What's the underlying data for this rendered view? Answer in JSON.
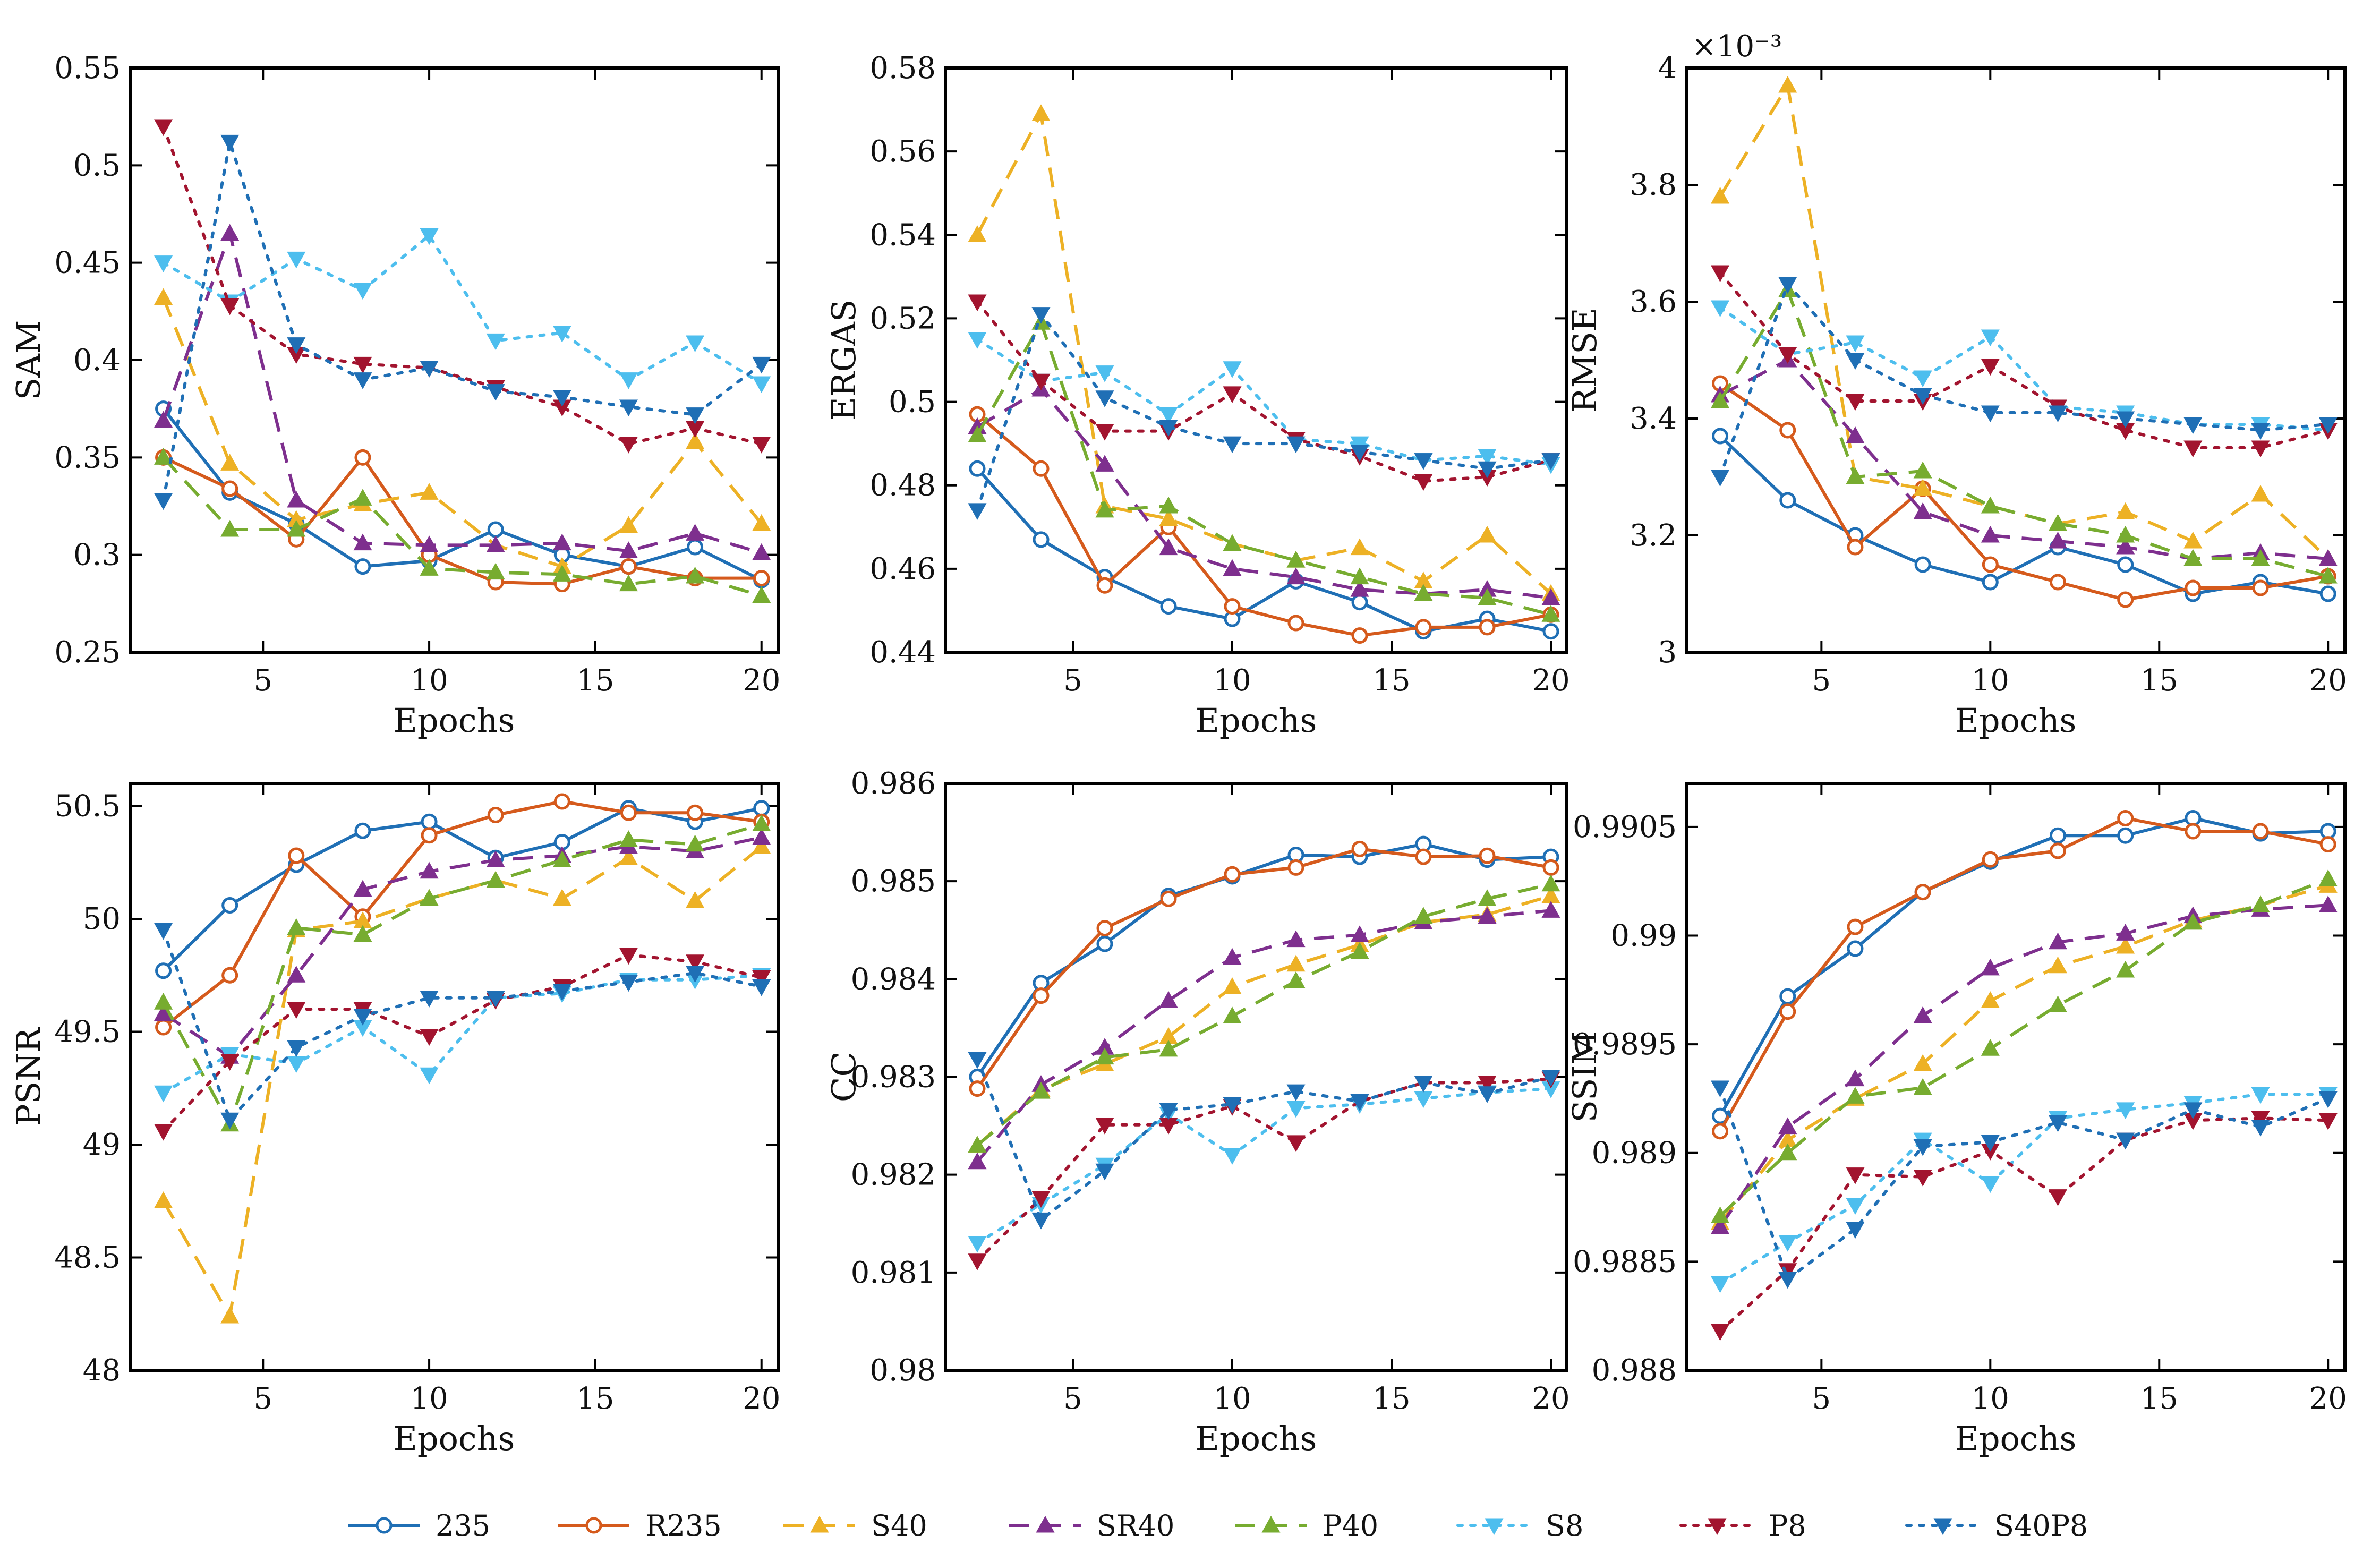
{
  "series_styles": [
    {
      "name": "235",
      "color": "#1f6fb5",
      "dash": "solid",
      "marker": "circle"
    },
    {
      "name": "R235",
      "color": "#d55a1c",
      "dash": "solid",
      "marker": "circle"
    },
    {
      "name": "S40",
      "color": "#edb125",
      "dash": "dashed",
      "marker": "triangle-up"
    },
    {
      "name": "SR40",
      "color": "#7e2f8e",
      "dash": "dashed",
      "marker": "triangle-up"
    },
    {
      "name": "P40",
      "color": "#77ac30",
      "dash": "dashed",
      "marker": "triangle-up"
    },
    {
      "name": "S8",
      "color": "#4dbeee",
      "dash": "dotted",
      "marker": "triangle-down"
    },
    {
      "name": "P8",
      "color": "#a2142f",
      "dash": "dotted",
      "marker": "triangle-down"
    },
    {
      "name": "S40P8",
      "color": "#1f6fb5",
      "dash": "dotted",
      "marker": "triangle-down"
    }
  ],
  "legend": {
    "placement": "bottom"
  },
  "chart_data": [
    {
      "type": "line",
      "ylabel": "SAM",
      "xlabel": "Epochs",
      "xlim": [
        1,
        20.5
      ],
      "ylim": [
        0.25,
        0.55
      ],
      "xticks": [
        5,
        10,
        15,
        20
      ],
      "xtick_labels": [
        "5",
        "10",
        "15",
        "20"
      ],
      "yticks": [
        0.25,
        0.3,
        0.35,
        0.4,
        0.45,
        0.5,
        0.55
      ],
      "ytick_labels": [
        "0.25",
        "0.3",
        "0.35",
        "0.4",
        "0.45",
        "0.5",
        "0.55"
      ],
      "scale_label": "",
      "x": [
        2,
        4,
        6,
        8,
        10,
        12,
        14,
        16,
        18,
        20
      ],
      "series": [
        {
          "name": "235",
          "values": [
            0.375,
            0.332,
            0.316,
            0.294,
            0.297,
            0.313,
            0.3,
            0.294,
            0.304,
            0.287
          ]
        },
        {
          "name": "R235",
          "values": [
            0.35,
            0.334,
            0.308,
            0.35,
            0.3,
            0.286,
            0.285,
            0.294,
            0.288,
            0.288
          ]
        },
        {
          "name": "S40",
          "values": [
            0.432,
            0.347,
            0.318,
            0.326,
            0.332,
            0.305,
            0.294,
            0.315,
            0.358,
            0.316
          ]
        },
        {
          "name": "SR40",
          "values": [
            0.369,
            0.465,
            0.328,
            0.306,
            0.305,
            0.305,
            0.306,
            0.302,
            0.311,
            0.301
          ]
        },
        {
          "name": "P40",
          "values": [
            0.35,
            0.313,
            0.313,
            0.329,
            0.293,
            0.291,
            0.29,
            0.285,
            0.289,
            0.279
          ]
        },
        {
          "name": "S8",
          "values": [
            0.45,
            0.43,
            0.452,
            0.436,
            0.464,
            0.41,
            0.414,
            0.39,
            0.409,
            0.388
          ]
        },
        {
          "name": "P8",
          "values": [
            0.52,
            0.428,
            0.403,
            0.398,
            0.396,
            0.386,
            0.376,
            0.357,
            0.365,
            0.357
          ]
        },
        {
          "name": "S40P8",
          "values": [
            0.328,
            0.512,
            0.408,
            0.39,
            0.396,
            0.384,
            0.381,
            0.376,
            0.372,
            0.398
          ]
        }
      ]
    },
    {
      "type": "line",
      "ylabel": "ERGAS",
      "xlabel": "Epochs",
      "xlim": [
        1,
        20.5
      ],
      "ylim": [
        0.44,
        0.58
      ],
      "xticks": [
        5,
        10,
        15,
        20
      ],
      "xtick_labels": [
        "5",
        "10",
        "15",
        "20"
      ],
      "yticks": [
        0.44,
        0.46,
        0.48,
        0.5,
        0.52,
        0.54,
        0.56,
        0.58
      ],
      "ytick_labels": [
        "0.44",
        "0.46",
        "0.48",
        "0.5",
        "0.52",
        "0.54",
        "0.56",
        "0.58"
      ],
      "scale_label": "",
      "x": [
        2,
        4,
        6,
        8,
        10,
        12,
        14,
        16,
        18,
        20
      ],
      "series": [
        {
          "name": "235",
          "values": [
            0.484,
            0.467,
            0.458,
            0.451,
            0.448,
            0.457,
            0.452,
            0.445,
            0.448,
            0.445
          ]
        },
        {
          "name": "R235",
          "values": [
            0.497,
            0.484,
            0.456,
            0.47,
            0.451,
            0.447,
            0.444,
            0.446,
            0.446,
            0.449
          ]
        },
        {
          "name": "S40",
          "values": [
            0.54,
            0.569,
            0.475,
            0.472,
            0.466,
            0.462,
            0.465,
            0.457,
            0.468,
            0.454
          ]
        },
        {
          "name": "SR40",
          "values": [
            0.494,
            0.503,
            0.485,
            0.465,
            0.46,
            0.458,
            0.455,
            0.454,
            0.455,
            0.453
          ]
        },
        {
          "name": "P40",
          "values": [
            0.492,
            0.519,
            0.474,
            0.475,
            0.466,
            0.462,
            0.458,
            0.454,
            0.453,
            0.449
          ]
        },
        {
          "name": "S8",
          "values": [
            0.515,
            0.505,
            0.507,
            0.497,
            0.508,
            0.491,
            0.49,
            0.486,
            0.487,
            0.485
          ]
        },
        {
          "name": "P8",
          "values": [
            0.524,
            0.505,
            0.493,
            0.493,
            0.502,
            0.491,
            0.487,
            0.481,
            0.482,
            0.486
          ]
        },
        {
          "name": "S40P8",
          "values": [
            0.474,
            0.521,
            0.501,
            0.494,
            0.49,
            0.49,
            0.488,
            0.486,
            0.484,
            0.486
          ]
        }
      ]
    },
    {
      "type": "line",
      "ylabel": "RMSE",
      "xlabel": "Epochs",
      "xlim": [
        1,
        20.5
      ],
      "ylim": [
        3.0,
        4.0
      ],
      "xticks": [
        5,
        10,
        15,
        20
      ],
      "xtick_labels": [
        "5",
        "10",
        "15",
        "20"
      ],
      "yticks": [
        3.0,
        3.2,
        3.4,
        3.6,
        3.8,
        4.0
      ],
      "ytick_labels": [
        "3",
        "3.2",
        "3.4",
        "3.6",
        "3.8",
        "4"
      ],
      "scale_label": "×10⁻³",
      "x": [
        2,
        4,
        6,
        8,
        10,
        12,
        14,
        16,
        18,
        20
      ],
      "series": [
        {
          "name": "235",
          "values": [
            3.37,
            3.26,
            3.2,
            3.15,
            3.12,
            3.18,
            3.15,
            3.1,
            3.12,
            3.1
          ]
        },
        {
          "name": "R235",
          "values": [
            3.46,
            3.38,
            3.18,
            3.28,
            3.15,
            3.12,
            3.09,
            3.11,
            3.11,
            3.13
          ]
        },
        {
          "name": "S40",
          "values": [
            3.78,
            3.97,
            3.3,
            3.28,
            3.25,
            3.22,
            3.24,
            3.19,
            3.27,
            3.16
          ]
        },
        {
          "name": "SR40",
          "values": [
            3.44,
            3.5,
            3.37,
            3.24,
            3.2,
            3.19,
            3.18,
            3.16,
            3.17,
            3.16
          ]
        },
        {
          "name": "P40",
          "values": [
            3.43,
            3.62,
            3.3,
            3.31,
            3.25,
            3.22,
            3.2,
            3.16,
            3.16,
            3.13
          ]
        },
        {
          "name": "S8",
          "values": [
            3.59,
            3.51,
            3.53,
            3.47,
            3.54,
            3.42,
            3.41,
            3.39,
            3.39,
            3.38
          ]
        },
        {
          "name": "P8",
          "values": [
            3.65,
            3.51,
            3.43,
            3.43,
            3.49,
            3.42,
            3.38,
            3.35,
            3.35,
            3.38
          ]
        },
        {
          "name": "S40P8",
          "values": [
            3.3,
            3.63,
            3.5,
            3.44,
            3.41,
            3.41,
            3.4,
            3.39,
            3.38,
            3.39
          ]
        }
      ]
    },
    {
      "type": "line",
      "ylabel": "PSNR",
      "xlabel": "Epochs",
      "xlim": [
        1,
        20.5
      ],
      "ylim": [
        48.0,
        50.6
      ],
      "xticks": [
        5,
        10,
        15,
        20
      ],
      "xtick_labels": [
        "5",
        "10",
        "15",
        "20"
      ],
      "yticks": [
        48.0,
        48.5,
        49.0,
        49.5,
        50.0,
        50.5
      ],
      "ytick_labels": [
        "48",
        "48.5",
        "49",
        "49.5",
        "50",
        "50.5"
      ],
      "scale_label": "",
      "x": [
        2,
        4,
        6,
        8,
        10,
        12,
        14,
        16,
        18,
        20
      ],
      "series": [
        {
          "name": "235",
          "values": [
            49.77,
            50.06,
            50.24,
            50.39,
            50.43,
            50.27,
            50.34,
            50.49,
            50.43,
            50.49
          ]
        },
        {
          "name": "R235",
          "values": [
            49.52,
            49.75,
            50.28,
            50.01,
            50.37,
            50.46,
            50.52,
            50.47,
            50.47,
            50.43
          ]
        },
        {
          "name": "S40",
          "values": [
            48.75,
            48.24,
            49.95,
            49.99,
            50.09,
            50.17,
            50.09,
            50.27,
            50.08,
            50.32
          ]
        },
        {
          "name": "SR40",
          "values": [
            49.58,
            49.39,
            49.75,
            50.13,
            50.21,
            50.26,
            50.28,
            50.32,
            50.3,
            50.36
          ]
        },
        {
          "name": "P40",
          "values": [
            49.63,
            49.09,
            49.96,
            49.93,
            50.09,
            50.17,
            50.26,
            50.35,
            50.33,
            50.42
          ]
        },
        {
          "name": "S8",
          "values": [
            49.23,
            49.4,
            49.36,
            49.52,
            49.31,
            49.65,
            49.67,
            49.73,
            49.73,
            49.75
          ]
        },
        {
          "name": "P8",
          "values": [
            49.06,
            49.37,
            49.6,
            49.6,
            49.48,
            49.64,
            49.7,
            49.84,
            49.81,
            49.74
          ]
        },
        {
          "name": "S40P8",
          "values": [
            49.95,
            49.11,
            49.43,
            49.57,
            49.65,
            49.65,
            49.68,
            49.72,
            49.76,
            49.7
          ]
        }
      ]
    },
    {
      "type": "line",
      "ylabel": "CC",
      "xlabel": "Epochs",
      "xlim": [
        1,
        20.5
      ],
      "ylim": [
        0.98,
        0.986
      ],
      "xticks": [
        5,
        10,
        15,
        20
      ],
      "xtick_labels": [
        "5",
        "10",
        "15",
        "20"
      ],
      "yticks": [
        0.98,
        0.981,
        0.982,
        0.983,
        0.984,
        0.985,
        0.986
      ],
      "ytick_labels": [
        "0.98",
        "0.981",
        "0.982",
        "0.983",
        "0.984",
        "0.985",
        "0.986"
      ],
      "scale_label": "",
      "x": [
        2,
        4,
        6,
        8,
        10,
        12,
        14,
        16,
        18,
        20
      ],
      "series": [
        {
          "name": "235",
          "values": [
            0.983,
            0.98396,
            0.98436,
            0.98485,
            0.98505,
            0.98527,
            0.98525,
            0.98538,
            0.98522,
            0.98525
          ]
        },
        {
          "name": "R235",
          "values": [
            0.98288,
            0.98383,
            0.98452,
            0.98482,
            0.98507,
            0.98514,
            0.98533,
            0.98525,
            0.98526,
            0.98514
          ]
        },
        {
          "name": "S40",
          "values": [
            0.9823,
            0.98287,
            0.98313,
            0.98341,
            0.98392,
            0.98415,
            0.98435,
            0.98458,
            0.98466,
            0.98485
          ]
        },
        {
          "name": "SR40",
          "values": [
            0.98213,
            0.98292,
            0.9833,
            0.98378,
            0.98422,
            0.9844,
            0.98445,
            0.98458,
            0.98464,
            0.9847
          ]
        },
        {
          "name": "P40",
          "values": [
            0.9823,
            0.98285,
            0.9832,
            0.98328,
            0.98362,
            0.98398,
            0.98428,
            0.98464,
            0.98482,
            0.98497
          ]
        },
        {
          "name": "S8",
          "values": [
            0.9813,
            0.9817,
            0.9821,
            0.98262,
            0.9822,
            0.98268,
            0.98272,
            0.98278,
            0.98284,
            0.98288
          ]
        },
        {
          "name": "P8",
          "values": [
            0.98112,
            0.98176,
            0.98251,
            0.98251,
            0.9827,
            0.98233,
            0.98275,
            0.98294,
            0.98294,
            0.98298
          ]
        },
        {
          "name": "S40P8",
          "values": [
            0.98318,
            0.98154,
            0.98204,
            0.98266,
            0.98272,
            0.98285,
            0.98275,
            0.98294,
            0.98283,
            0.983
          ]
        }
      ]
    },
    {
      "type": "line",
      "ylabel": "SSIM",
      "xlabel": "Epochs",
      "xlim": [
        1,
        20.5
      ],
      "ylim": [
        0.988,
        0.9907
      ],
      "xticks": [
        5,
        10,
        15,
        20
      ],
      "xtick_labels": [
        "5",
        "10",
        "15",
        "20"
      ],
      "yticks": [
        0.988,
        0.9885,
        0.989,
        0.9895,
        0.99,
        0.9905
      ],
      "ytick_labels": [
        "0.988",
        "0.9885",
        "0.989",
        "0.9895",
        "0.99",
        "0.9905"
      ],
      "scale_label": "",
      "x": [
        2,
        4,
        6,
        8,
        10,
        12,
        14,
        16,
        18,
        20
      ],
      "series": [
        {
          "name": "235",
          "values": [
            0.98917,
            0.98972,
            0.98994,
            0.9902,
            0.99034,
            0.99046,
            0.99046,
            0.99054,
            0.99047,
            0.99048
          ]
        },
        {
          "name": "R235",
          "values": [
            0.9891,
            0.98965,
            0.99004,
            0.9902,
            0.99035,
            0.99039,
            0.99054,
            0.99048,
            0.99048,
            0.99042
          ]
        },
        {
          "name": "S40",
          "values": [
            0.98868,
            0.98906,
            0.98925,
            0.98941,
            0.9897,
            0.98986,
            0.98995,
            0.99007,
            0.99014,
            0.99023
          ]
        },
        {
          "name": "SR40",
          "values": [
            0.98866,
            0.98912,
            0.98934,
            0.98963,
            0.98985,
            0.98997,
            0.99001,
            0.99009,
            0.99012,
            0.99014
          ]
        },
        {
          "name": "P40",
          "values": [
            0.98871,
            0.989,
            0.98926,
            0.9893,
            0.98948,
            0.98968,
            0.98984,
            0.99006,
            0.99014,
            0.99026
          ]
        },
        {
          "name": "S8",
          "values": [
            0.9884,
            0.98859,
            0.98876,
            0.98906,
            0.98886,
            0.98916,
            0.9892,
            0.98923,
            0.98927,
            0.98927
          ]
        },
        {
          "name": "P8",
          "values": [
            0.98818,
            0.98846,
            0.9889,
            0.98889,
            0.98901,
            0.9888,
            0.98906,
            0.98915,
            0.98916,
            0.98915
          ]
        },
        {
          "name": "S40P8",
          "values": [
            0.9893,
            0.98842,
            0.98865,
            0.98903,
            0.98905,
            0.98914,
            0.98906,
            0.9892,
            0.98912,
            0.98925
          ]
        }
      ]
    }
  ]
}
